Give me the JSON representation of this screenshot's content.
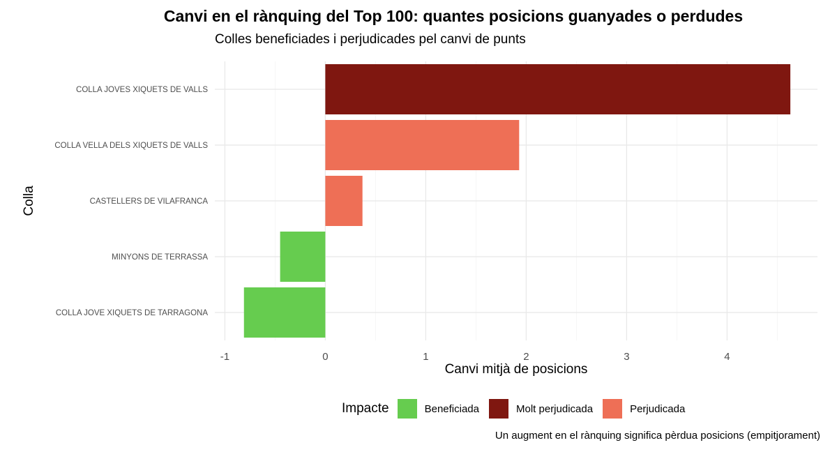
{
  "chart_data": {
    "type": "bar",
    "orientation": "horizontal",
    "title": "Canvi en el rànquing del Top 100: quantes posicions guanyades o perdudes",
    "subtitle": "Colles beneficiades i perjudicades pel canvi de punts",
    "xlabel": "Canvi mitjà de posicions",
    "ylabel": "Colla",
    "caption": "Un augment en el rànquing significa pèrdua posicions (empitjorament)",
    "xlim": [
      -1.1,
      4.9
    ],
    "xticks": [
      -1,
      0,
      1,
      2,
      3,
      4
    ],
    "grid": true,
    "legend": {
      "title": "Impacte",
      "position": "bottom",
      "entries": [
        {
          "label": "Beneficiada",
          "color": "#66CC4F"
        },
        {
          "label": "Molt perjudicada",
          "color": "#7F1710"
        },
        {
          "label": "Perjudicada",
          "color": "#EE6F56"
        }
      ]
    },
    "categories": [
      "COLLA JOVES XIQUETS DE VALLS",
      "COLLA VELLA DELS XIQUETS DE VALLS",
      "CASTELLERS DE VILAFRANCA",
      "MINYONS DE TERRASSA",
      "COLLA JOVE XIQUETS DE TARRAGONA"
    ],
    "values": [
      4.63,
      1.93,
      0.37,
      -0.45,
      -0.81
    ],
    "impact": [
      "Molt perjudicada",
      "Perjudicada",
      "Perjudicada",
      "Beneficiada",
      "Beneficiada"
    ],
    "colors": [
      "#7F1710",
      "#EE6F56",
      "#EE6F56",
      "#66CC4F",
      "#66CC4F"
    ]
  }
}
